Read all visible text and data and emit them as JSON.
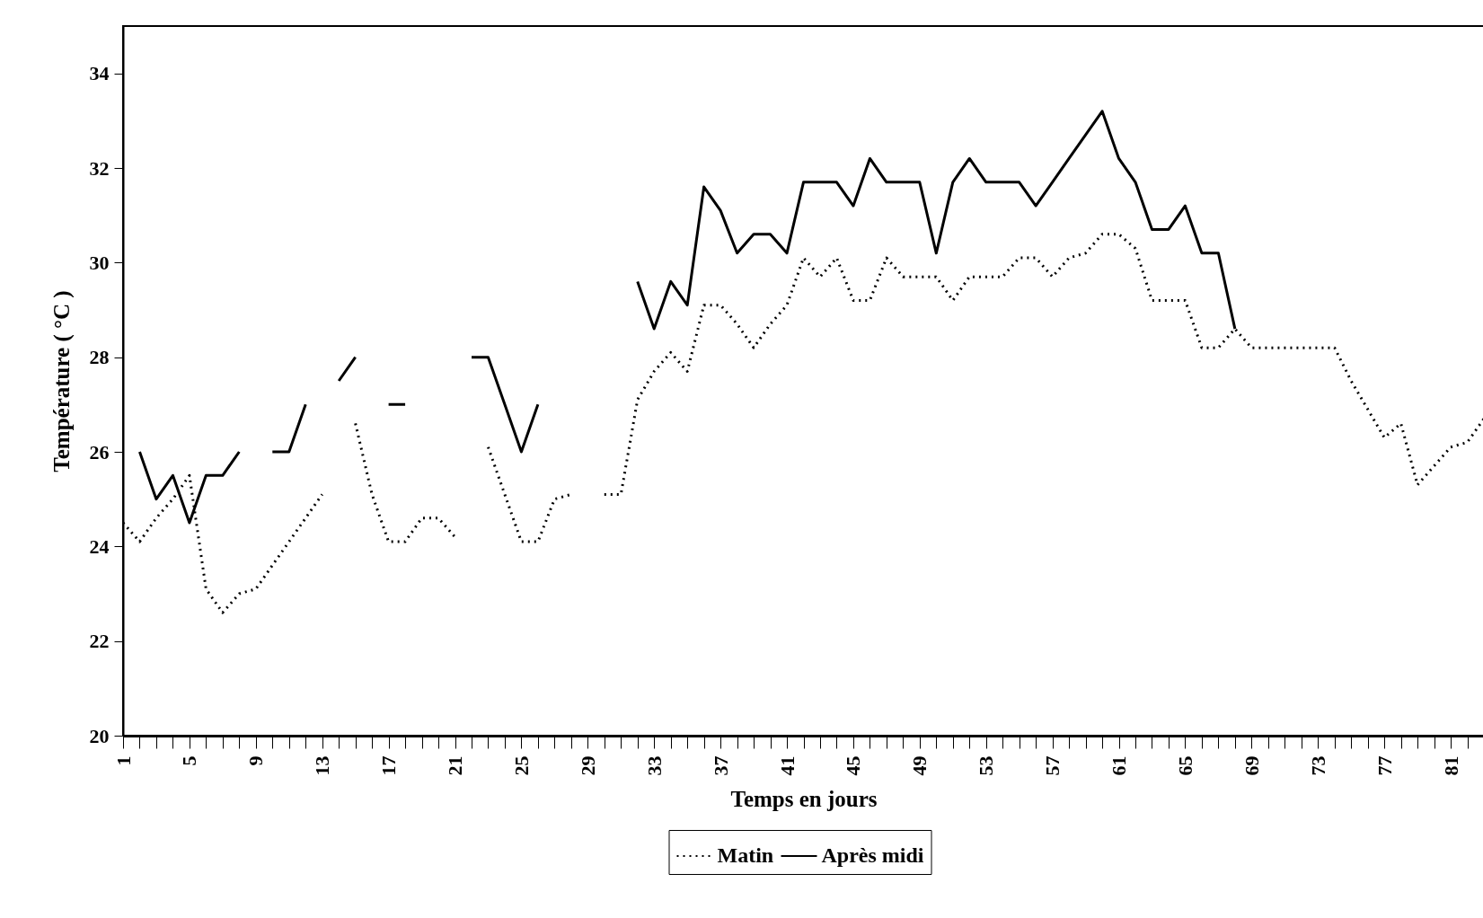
{
  "chart_data": {
    "type": "line",
    "xlabel": "Temps en jours",
    "ylabel": "Température ( °C )",
    "x": [
      1,
      2,
      3,
      4,
      5,
      6,
      7,
      8,
      9,
      10,
      11,
      12,
      13,
      14,
      15,
      16,
      17,
      18,
      19,
      20,
      21,
      22,
      23,
      24,
      25,
      26,
      27,
      28,
      29,
      30,
      31,
      32,
      33,
      34,
      35,
      36,
      37,
      38,
      39,
      40,
      41,
      42,
      43,
      44,
      45,
      46,
      47,
      48,
      49,
      50,
      51,
      52,
      53,
      54,
      55,
      56,
      57,
      58,
      59,
      60,
      61,
      62,
      63,
      64,
      65,
      66,
      67,
      68,
      69,
      70,
      71,
      72,
      73,
      74,
      75,
      76,
      77,
      78,
      79,
      80,
      81,
      82,
      83
    ],
    "series": [
      {
        "name": "Matin",
        "color": "#000000",
        "line_style": "dotted",
        "values": [
          24.5,
          24.1,
          24.6,
          25.0,
          25.5,
          23.1,
          22.6,
          23.0,
          23.1,
          23.6,
          24.1,
          24.6,
          25.1,
          null,
          26.6,
          25.1,
          24.1,
          24.1,
          24.6,
          24.6,
          24.2,
          null,
          26.1,
          25.1,
          24.1,
          24.1,
          25.0,
          25.1,
          null,
          25.1,
          25.1,
          27.1,
          27.7,
          28.1,
          27.7,
          29.1,
          29.1,
          28.7,
          28.2,
          28.7,
          29.1,
          30.1,
          29.7,
          30.1,
          29.2,
          29.2,
          30.1,
          29.7,
          29.7,
          29.7,
          29.2,
          29.7,
          29.7,
          29.7,
          30.1,
          30.1,
          29.7,
          30.1,
          30.2,
          30.6,
          30.6,
          30.3,
          29.2,
          29.2,
          29.2,
          28.2,
          28.2,
          28.6,
          28.2,
          28.2,
          28.2,
          28.2,
          28.2,
          28.2,
          27.5,
          26.9,
          26.3,
          26.6,
          25.3,
          25.7,
          26.1,
          26.2,
          26.7
        ]
      },
      {
        "name": "Après midi",
        "color": "#000000",
        "line_style": "solid",
        "values": [
          null,
          26,
          25,
          25.5,
          24.5,
          25.5,
          25.5,
          26,
          null,
          26,
          26,
          27,
          null,
          27.5,
          28,
          null,
          27,
          27,
          null,
          null,
          null,
          28,
          28,
          27,
          26,
          27,
          null,
          null,
          null,
          null,
          null,
          29.6,
          28.6,
          29.6,
          29.1,
          31.6,
          31.1,
          30.2,
          30.6,
          30.6,
          30.2,
          31.7,
          31.7,
          31.7,
          31.2,
          32.2,
          31.7,
          31.7,
          31.7,
          30.2,
          31.7,
          32.2,
          31.7,
          31.7,
          31.7,
          31.2,
          31.7,
          32.2,
          32.7,
          33.2,
          32.2,
          31.7,
          30.7,
          30.7,
          31.2,
          30.2,
          30.2,
          28.6,
          null,
          null,
          null,
          null,
          null,
          null,
          null,
          null,
          null,
          null,
          null,
          null,
          null,
          null,
          null
        ]
      }
    ],
    "xlim": [
      1,
      83
    ],
    "xticks": [
      1,
      {
        "value": 2,
        "label": null
      },
      {
        "value": 3,
        "label": null
      },
      {
        "value": 4,
        "label": null
      },
      5,
      {
        "value": 6,
        "label": null
      },
      {
        "value": 7,
        "label": null
      },
      {
        "value": 8,
        "label": null
      },
      9,
      {
        "value": 10,
        "label": null
      },
      {
        "value": 11,
        "label": null
      },
      {
        "value": 12,
        "label": null
      },
      13,
      {
        "value": 14,
        "label": null
      },
      {
        "value": 15,
        "label": null
      },
      {
        "value": 16,
        "label": null
      },
      17,
      {
        "value": 18,
        "label": null
      },
      {
        "value": 19,
        "label": null
      },
      {
        "value": 20,
        "label": null
      },
      21,
      {
        "value": 22,
        "label": null
      },
      {
        "value": 23,
        "label": null
      },
      {
        "value": 24,
        "label": null
      },
      25,
      {
        "value": 26,
        "label": null
      },
      {
        "value": 27,
        "label": null
      },
      {
        "value": 28,
        "label": null
      },
      29,
      {
        "value": 30,
        "label": null
      },
      {
        "value": 31,
        "label": null
      },
      {
        "value": 32,
        "label": null
      },
      33,
      {
        "value": 34,
        "label": null
      },
      {
        "value": 35,
        "label": null
      },
      {
        "value": 36,
        "label": null
      },
      37,
      {
        "value": 38,
        "label": null
      },
      {
        "value": 39,
        "label": null
      },
      {
        "value": 40,
        "label": null
      },
      41,
      {
        "value": 42,
        "label": null
      },
      {
        "value": 43,
        "label": null
      },
      {
        "value": 44,
        "label": null
      },
      45,
      {
        "value": 46,
        "label": null
      },
      {
        "value": 47,
        "label": null
      },
      {
        "value": 48,
        "label": null
      },
      49,
      {
        "value": 50,
        "label": null
      },
      {
        "value": 51,
        "label": null
      },
      {
        "value": 52,
        "label": null
      },
      53,
      {
        "value": 54,
        "label": null
      },
      {
        "value": 55,
        "label": null
      },
      {
        "value": 56,
        "label": null
      },
      57,
      {
        "value": 58,
        "label": null
      },
      {
        "value": 59,
        "label": null
      },
      {
        "value": 60,
        "label": null
      },
      61,
      {
        "value": 62,
        "label": null
      },
      {
        "value": 63,
        "label": null
      },
      {
        "value": 64,
        "label": null
      },
      65,
      {
        "value": 66,
        "label": null
      },
      {
        "value": 67,
        "label": null
      },
      {
        "value": 68,
        "label": null
      },
      69,
      {
        "value": 70,
        "label": null
      },
      {
        "value": 71,
        "label": null
      },
      {
        "value": 72,
        "label": null
      },
      73,
      {
        "value": 74,
        "label": null
      },
      {
        "value": 75,
        "label": null
      },
      {
        "value": 76,
        "label": null
      },
      77,
      {
        "value": 78,
        "label": null
      },
      {
        "value": 79,
        "label": null
      },
      {
        "value": 80,
        "label": null
      },
      81,
      {
        "value": 82,
        "label": null
      },
      {
        "value": 83,
        "label": null
      }
    ],
    "ylim": [
      20,
      35
    ],
    "yticks": [
      20,
      22,
      24,
      26,
      28,
      30,
      32,
      34
    ],
    "grid": false,
    "legend": "bottom",
    "marker": "none"
  }
}
